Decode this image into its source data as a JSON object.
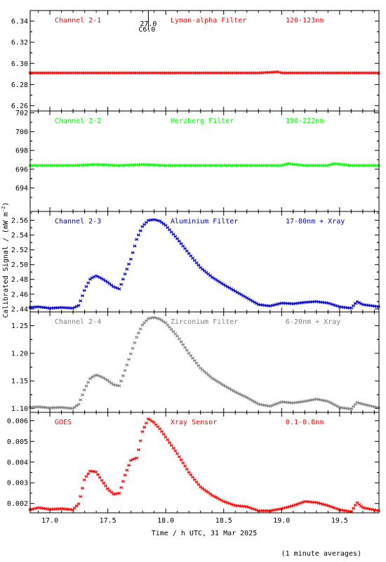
{
  "chart_data": [
    {
      "type": "scatter",
      "panel": "Channel 2-1",
      "labels": [
        "Channel 2-1",
        "Lyman-alpha Filter",
        "120-123nm"
      ],
      "color": "#ff0000",
      "ylim": [
        6.255,
        6.35
      ],
      "yticks": [
        6.26,
        6.28,
        6.3,
        6.32,
        6.34
      ],
      "ytick_labels": [
        "6.26",
        "6.28",
        "6.30",
        "6.32",
        "6.34"
      ],
      "annotation": [
        "27.0",
        "C6.0"
      ],
      "series": [
        {
          "x": [
            16.83,
            17.0,
            17.2,
            17.4,
            17.6,
            17.8,
            18.0,
            18.2,
            18.4,
            18.6,
            18.8,
            18.97,
            19.0,
            19.2,
            19.4,
            19.6,
            19.84
          ],
          "y": [
            6.291,
            6.291,
            6.291,
            6.291,
            6.291,
            6.291,
            6.291,
            6.291,
            6.291,
            6.291,
            6.291,
            6.292,
            6.291,
            6.291,
            6.291,
            6.291,
            6.291
          ]
        }
      ]
    },
    {
      "type": "scatter",
      "panel": "Channel 2-2",
      "labels": [
        "Channel 2-2",
        "Herzberg Filter",
        "190-222nm"
      ],
      "color": "#00ff00",
      "ylim": [
        691.5,
        702.2
      ],
      "yticks": [
        694,
        696,
        698,
        700,
        702
      ],
      "ytick_labels": [
        "694",
        "696",
        "698",
        "700",
        "702"
      ],
      "series": [
        {
          "x": [
            16.83,
            17.0,
            17.2,
            17.4,
            17.6,
            17.8,
            18.0,
            18.2,
            18.4,
            18.6,
            18.8,
            19.0,
            19.05,
            19.2,
            19.4,
            19.45,
            19.6,
            19.84
          ],
          "y": [
            696.4,
            696.4,
            696.4,
            696.5,
            696.4,
            696.5,
            696.4,
            696.4,
            696.4,
            696.4,
            696.4,
            696.4,
            696.6,
            696.4,
            696.4,
            696.6,
            696.4,
            696.4
          ]
        }
      ]
    },
    {
      "type": "scatter",
      "panel": "Channel 2-3",
      "labels": [
        "Channel 2-3",
        "Aluminium Filter",
        "17-80nm + Xray"
      ],
      "color": "#0000cc",
      "ylim": [
        2.436,
        2.572
      ],
      "yticks": [
        2.44,
        2.46,
        2.48,
        2.5,
        2.52,
        2.54,
        2.56
      ],
      "ytick_labels": [
        "2.44",
        "2.46",
        "2.48",
        "2.50",
        "2.52",
        "2.54",
        "2.56"
      ],
      "series": [
        {
          "x": [
            16.83,
            16.9,
            17.0,
            17.1,
            17.2,
            17.25,
            17.3,
            17.35,
            17.4,
            17.45,
            17.5,
            17.55,
            17.6,
            17.65,
            17.7,
            17.75,
            17.8,
            17.85,
            17.9,
            17.95,
            18.0,
            18.1,
            18.2,
            18.3,
            18.4,
            18.5,
            18.6,
            18.7,
            18.8,
            18.9,
            19.0,
            19.1,
            19.2,
            19.3,
            19.4,
            19.5,
            19.6,
            19.65,
            19.7,
            19.84
          ],
          "y": [
            2.442,
            2.443,
            2.441,
            2.442,
            2.441,
            2.445,
            2.466,
            2.481,
            2.485,
            2.481,
            2.476,
            2.47,
            2.467,
            2.488,
            2.508,
            2.535,
            2.552,
            2.56,
            2.561,
            2.559,
            2.553,
            2.535,
            2.515,
            2.496,
            2.483,
            2.473,
            2.464,
            2.455,
            2.446,
            2.444,
            2.448,
            2.447,
            2.449,
            2.45,
            2.448,
            2.443,
            2.441,
            2.45,
            2.446,
            2.443
          ]
        }
      ]
    },
    {
      "type": "scatter",
      "panel": "Channel 2-4",
      "labels": [
        "Channel 2-4",
        "Zirconium Filter",
        "6-20nm + Xray"
      ],
      "color": "#808080",
      "ylim": [
        1.093,
        1.275
      ],
      "yticks": [
        1.1,
        1.15,
        1.2,
        1.25
      ],
      "ytick_labels": [
        "1.10",
        "1.15",
        "1.20",
        "1.25"
      ],
      "series": [
        {
          "x": [
            16.83,
            16.9,
            17.0,
            17.1,
            17.2,
            17.25,
            17.3,
            17.35,
            17.4,
            17.45,
            17.5,
            17.55,
            17.6,
            17.65,
            17.7,
            17.75,
            17.8,
            17.85,
            17.9,
            17.95,
            18.0,
            18.1,
            18.2,
            18.3,
            18.4,
            18.5,
            18.6,
            18.7,
            18.8,
            18.9,
            19.0,
            19.1,
            19.2,
            19.3,
            19.4,
            19.5,
            19.6,
            19.65,
            19.7,
            19.84
          ],
          "y": [
            1.102,
            1.103,
            1.101,
            1.102,
            1.1,
            1.108,
            1.135,
            1.155,
            1.161,
            1.157,
            1.151,
            1.143,
            1.141,
            1.17,
            1.2,
            1.23,
            1.252,
            1.263,
            1.265,
            1.262,
            1.255,
            1.231,
            1.2,
            1.173,
            1.155,
            1.142,
            1.13,
            1.12,
            1.108,
            1.104,
            1.112,
            1.11,
            1.113,
            1.117,
            1.113,
            1.102,
            1.099,
            1.111,
            1.108,
            1.101
          ]
        }
      ]
    },
    {
      "type": "scatter",
      "panel": "GOES",
      "labels": [
        "GOES",
        "Xray Sensor",
        "0.1-0.8nm"
      ],
      "color": "#ff0000",
      "ylim": [
        0.00155,
        0.0064
      ],
      "yticks": [
        0.002,
        0.003,
        0.004,
        0.005,
        0.006
      ],
      "ytick_labels": [
        "0.002",
        "0.003",
        "0.004",
        "0.005",
        "0.006"
      ],
      "xlim": [
        16.83,
        19.84
      ],
      "xticks": [
        17.0,
        17.5,
        18.0,
        18.5,
        19.0,
        19.5
      ],
      "xtick_labels": [
        "17.0",
        "17.5",
        "18.0",
        "18.5",
        "19.0",
        "19.5"
      ],
      "xlabel": "Time / h UTC, 31 Mar 2025",
      "series": [
        {
          "x": [
            16.83,
            16.9,
            17.0,
            17.1,
            17.2,
            17.25,
            17.3,
            17.35,
            17.4,
            17.45,
            17.5,
            17.55,
            17.6,
            17.65,
            17.7,
            17.75,
            17.8,
            17.85,
            17.9,
            17.95,
            18.0,
            18.1,
            18.2,
            18.3,
            18.4,
            18.5,
            18.6,
            18.7,
            18.8,
            18.9,
            19.0,
            19.1,
            19.2,
            19.3,
            19.4,
            19.5,
            19.6,
            19.65,
            19.7,
            19.84
          ],
          "y": [
            0.0017,
            0.0018,
            0.00172,
            0.00175,
            0.0017,
            0.002,
            0.0032,
            0.00358,
            0.00352,
            0.0031,
            0.0027,
            0.00245,
            0.0025,
            0.0034,
            0.0041,
            0.0042,
            0.0055,
            0.0061,
            0.0059,
            0.0056,
            0.0052,
            0.0044,
            0.0035,
            0.0028,
            0.0024,
            0.0021,
            0.0019,
            0.00185,
            0.00165,
            0.00165,
            0.00175,
            0.0019,
            0.0021,
            0.00205,
            0.0019,
            0.0017,
            0.0016,
            0.00205,
            0.0018,
            0.00165
          ]
        }
      ]
    }
  ],
  "ylabel": "Calibrated Signal / (mW m",
  "ylabel_sup": "-2",
  "ylabel_end": ")",
  "footnote": "(1 minute averages)"
}
